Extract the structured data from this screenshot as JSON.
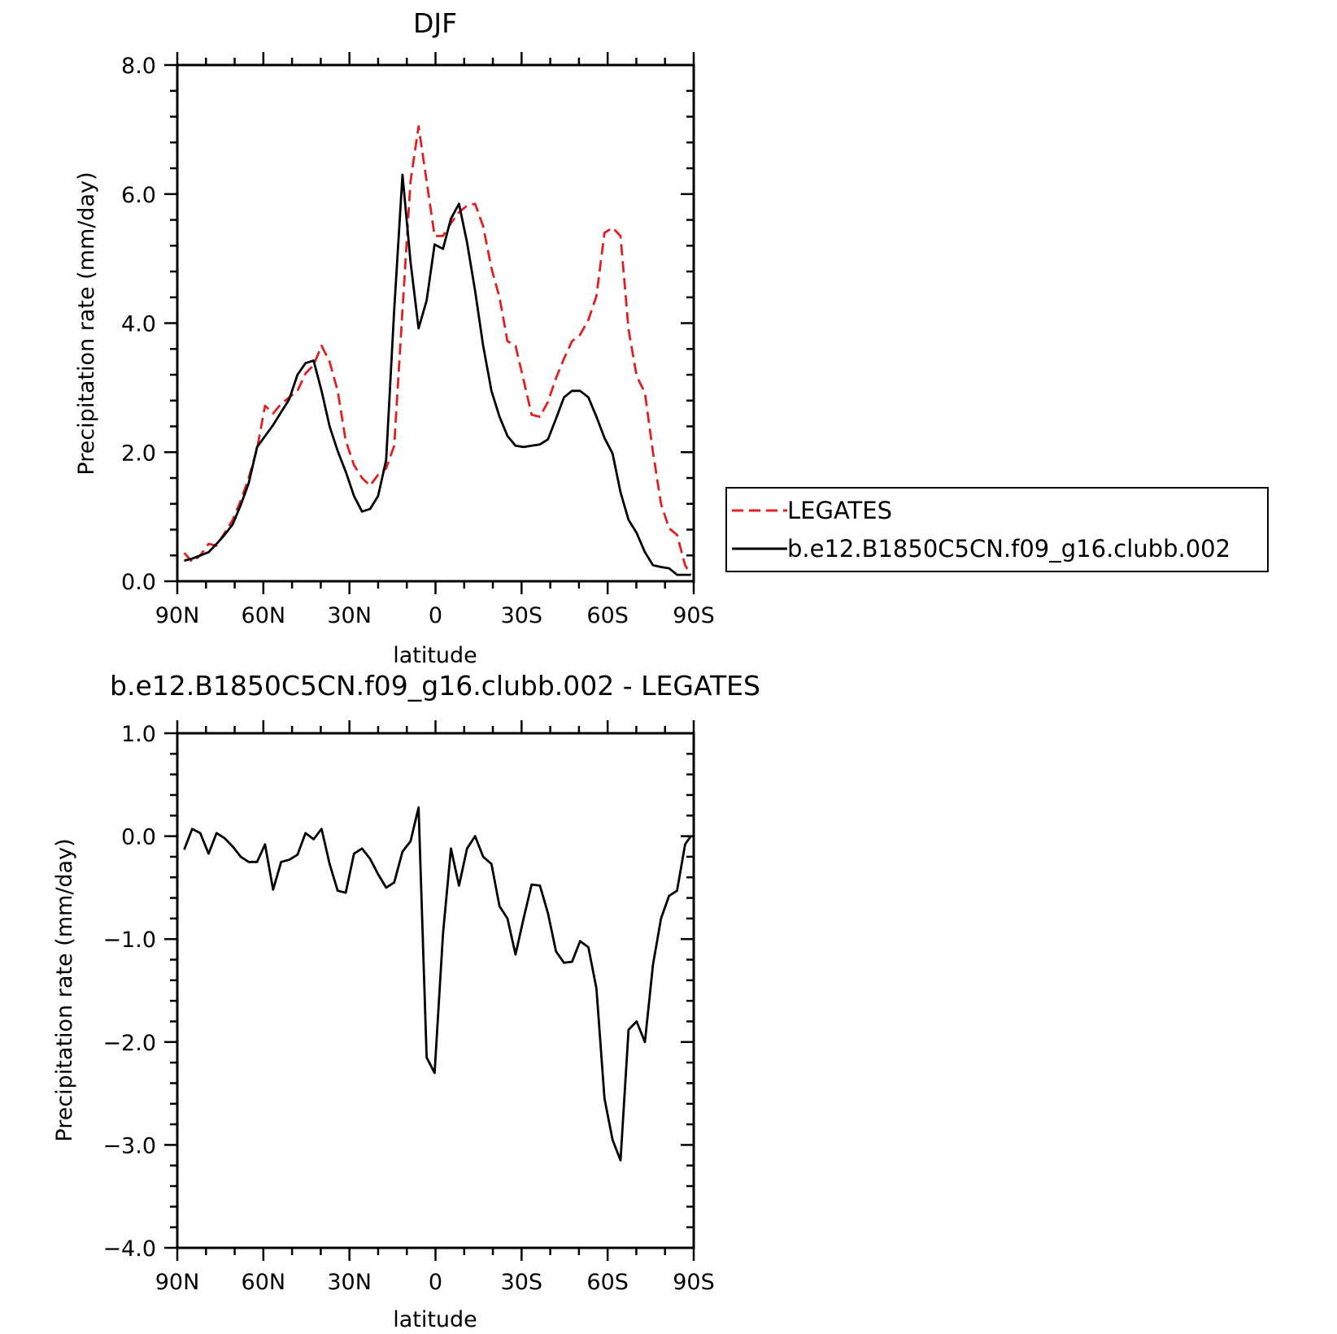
{
  "chart_data": [
    {
      "type": "line",
      "title": "DJF",
      "xlabel": "latitude",
      "ylabel": "Precipitation rate (mm/day)",
      "xlim": [
        90,
        -90
      ],
      "ylim": [
        0,
        8
      ],
      "x_ticks": [
        {
          "value": 90,
          "label": "90N"
        },
        {
          "value": 60,
          "label": "60N"
        },
        {
          "value": 30,
          "label": "30N"
        },
        {
          "value": 0,
          "label": "0"
        },
        {
          "value": -30,
          "label": "30S"
        },
        {
          "value": -60,
          "label": "60S"
        },
        {
          "value": -90,
          "label": "90S"
        }
      ],
      "y_ticks": [
        {
          "value": 0,
          "label": "0.0"
        },
        {
          "value": 2,
          "label": "2.0"
        },
        {
          "value": 4,
          "label": "4.0"
        },
        {
          "value": 6,
          "label": "6.0"
        },
        {
          "value": 8,
          "label": "8.0"
        }
      ],
      "legend": "right",
      "x": [
        87.6,
        84.8,
        82.0,
        79.1,
        76.3,
        73.5,
        70.7,
        67.9,
        65.1,
        62.2,
        59.4,
        56.6,
        53.8,
        51.0,
        48.1,
        45.3,
        42.5,
        39.7,
        36.9,
        34.1,
        31.3,
        28.4,
        25.6,
        22.8,
        20.0,
        17.2,
        14.4,
        11.5,
        8.7,
        5.9,
        3.1,
        0.3,
        -2.6,
        -5.4,
        -8.2,
        -11.0,
        -13.8,
        -16.6,
        -19.5,
        -22.3,
        -25.1,
        -27.9,
        -30.7,
        -33.5,
        -36.4,
        -39.2,
        -42.0,
        -44.8,
        -47.6,
        -50.4,
        -53.3,
        -56.1,
        -58.9,
        -61.7,
        -64.5,
        -67.3,
        -70.1,
        -73.0,
        -75.8,
        -78.6,
        -81.4,
        -84.2,
        -87.0,
        -89.0
      ],
      "series": [
        {
          "name": "LEGATES",
          "color": "#e02020",
          "dash": "dashed",
          "values": [
            0.44,
            0.3,
            0.4,
            0.58,
            0.55,
            0.75,
            0.95,
            1.25,
            1.6,
            2.05,
            2.72,
            2.6,
            2.75,
            2.85,
            2.95,
            3.22,
            3.35,
            3.65,
            3.4,
            2.95,
            2.18,
            1.8,
            1.6,
            1.48,
            1.65,
            1.75,
            2.1,
            4.2,
            6.2,
            7.05,
            6.2,
            5.35,
            5.35,
            5.55,
            5.72,
            5.82,
            5.85,
            5.5,
            4.85,
            4.4,
            3.72,
            3.65,
            3.12,
            2.58,
            2.55,
            2.78,
            3.15,
            3.45,
            3.72,
            3.82,
            4.05,
            4.42,
            5.4,
            5.48,
            5.35,
            3.9,
            3.18,
            2.92,
            2.0,
            1.2,
            0.82,
            0.72,
            0.25,
            0.1
          ]
        },
        {
          "name": "b.e12.B1850C5CN.f09_g16.clubb.002",
          "color": "#000000",
          "dash": "solid",
          "values": [
            0.32,
            0.35,
            0.4,
            0.45,
            0.58,
            0.72,
            0.88,
            1.18,
            1.52,
            2.08,
            2.25,
            2.42,
            2.62,
            2.82,
            3.2,
            3.38,
            3.42,
            2.95,
            2.4,
            2.02,
            1.7,
            1.32,
            1.08,
            1.12,
            1.32,
            1.88,
            4.2,
            6.3,
            4.95,
            3.92,
            4.35,
            5.22,
            5.15,
            5.62,
            5.85,
            5.25,
            4.5,
            3.65,
            2.95,
            2.55,
            2.25,
            2.1,
            2.08,
            2.1,
            2.12,
            2.2,
            2.52,
            2.85,
            2.95,
            2.95,
            2.85,
            2.55,
            2.22,
            1.98,
            1.38,
            0.95,
            0.75,
            0.45,
            0.25,
            0.22,
            0.2,
            0.1,
            0.1,
            0.1
          ]
        }
      ]
    },
    {
      "type": "line",
      "title": "b.e12.B1850C5CN.f09_g16.clubb.002 - LEGATES",
      "xlabel": "latitude",
      "ylabel": "Precipitation rate (mm/day)",
      "xlim": [
        90,
        -90
      ],
      "ylim": [
        -4,
        1
      ],
      "x_ticks": [
        {
          "value": 90,
          "label": "90N"
        },
        {
          "value": 60,
          "label": "60N"
        },
        {
          "value": 30,
          "label": "30N"
        },
        {
          "value": 0,
          "label": "0"
        },
        {
          "value": -30,
          "label": "30S"
        },
        {
          "value": -60,
          "label": "60S"
        },
        {
          "value": -90,
          "label": "90S"
        }
      ],
      "y_ticks": [
        {
          "value": -4,
          "label": "−4.0"
        },
        {
          "value": -3,
          "label": "−3.0"
        },
        {
          "value": -2,
          "label": "−2.0"
        },
        {
          "value": -1,
          "label": "−1.0"
        },
        {
          "value": 0,
          "label": "0.0"
        },
        {
          "value": 1,
          "label": "1.0"
        }
      ],
      "x": [
        87.6,
        84.8,
        82.0,
        79.1,
        76.3,
        73.5,
        70.7,
        67.9,
        65.1,
        62.2,
        59.4,
        56.6,
        53.8,
        51.0,
        48.1,
        45.3,
        42.5,
        39.7,
        36.9,
        34.1,
        31.3,
        28.4,
        25.6,
        22.8,
        20.0,
        17.2,
        14.4,
        11.5,
        8.7,
        5.9,
        3.1,
        0.3,
        -2.6,
        -5.4,
        -8.2,
        -11.0,
        -13.8,
        -16.6,
        -19.5,
        -22.3,
        -25.1,
        -27.9,
        -30.7,
        -33.5,
        -36.4,
        -39.2,
        -42.0,
        -44.8,
        -47.6,
        -50.4,
        -53.3,
        -56.1,
        -58.9,
        -61.7,
        -64.5,
        -67.3,
        -70.1,
        -73.0,
        -75.8,
        -78.6,
        -81.4,
        -84.2,
        -87.0,
        -89.0
      ],
      "series": [
        {
          "color": "#000000",
          "dash": "solid",
          "values": [
            -0.13,
            0.07,
            0.03,
            -0.17,
            0.03,
            -0.02,
            -0.1,
            -0.2,
            -0.25,
            -0.25,
            -0.08,
            -0.52,
            -0.25,
            -0.23,
            -0.18,
            0.03,
            -0.03,
            0.07,
            -0.27,
            -0.53,
            -0.55,
            -0.17,
            -0.12,
            -0.22,
            -0.37,
            -0.5,
            -0.45,
            -0.15,
            -0.05,
            0.28,
            -2.15,
            -2.3,
            -0.95,
            -0.12,
            -0.48,
            -0.12,
            0.0,
            -0.2,
            -0.27,
            -0.68,
            -0.8,
            -1.15,
            -0.8,
            -0.47,
            -0.48,
            -0.75,
            -1.12,
            -1.23,
            -1.22,
            -1.02,
            -1.08,
            -1.48,
            -2.55,
            -2.95,
            -3.15,
            -1.88,
            -1.8,
            -2.0,
            -1.25,
            -0.8,
            -0.58,
            -0.53,
            -0.08,
            0.0
          ]
        }
      ]
    }
  ],
  "legend": {
    "items": [
      {
        "label": "LEGATES",
        "color": "#e02020",
        "dash": "dashed"
      },
      {
        "label": "b.e12.B1850C5CN.f09_g16.clubb.002",
        "color": "#000000",
        "dash": "solid"
      }
    ]
  }
}
